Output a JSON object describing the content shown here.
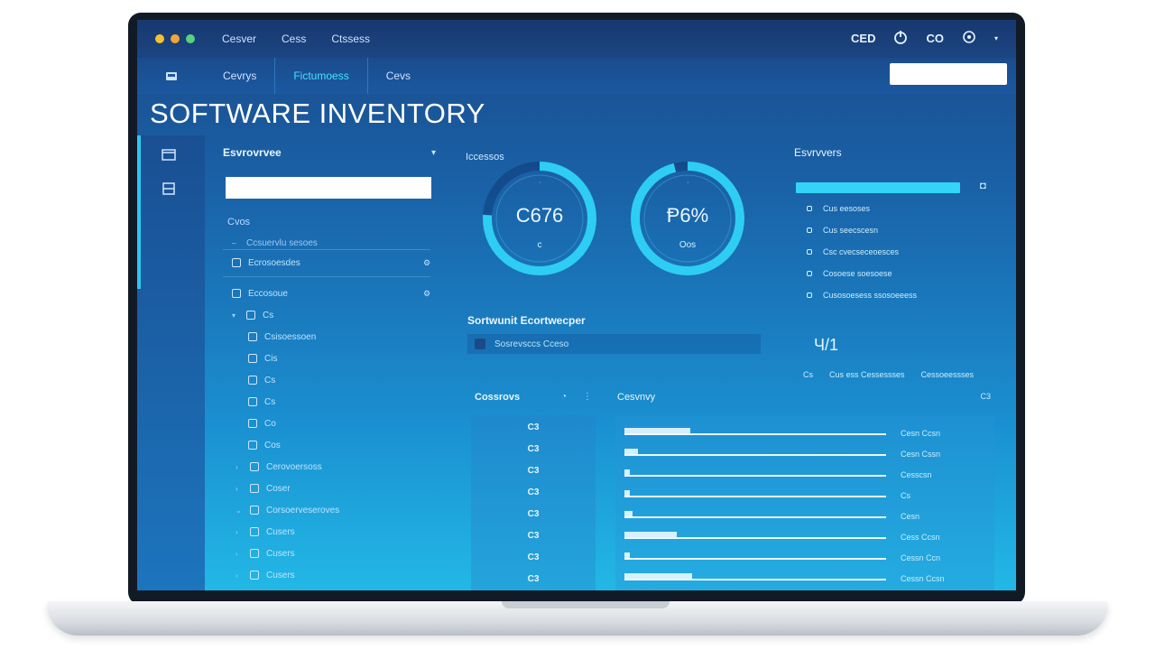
{
  "window": {
    "menu": [
      "Cesver",
      "Cess",
      "Ctssess"
    ],
    "actions": [
      "CED",
      "CO"
    ]
  },
  "nav": {
    "tabs": [
      "Cevrys",
      "Fictumoess",
      "Cevs"
    ]
  },
  "page": {
    "title": "SOFTWARE INVENTORY"
  },
  "tree": {
    "header": "Esvrovrvee",
    "label": "Cvos",
    "items": [
      {
        "label": "Ccsuervlu sesoes"
      },
      {
        "label": "Ecrosoesdes"
      },
      {
        "label": "Eccosoue"
      },
      {
        "label": "Cs"
      },
      {
        "label": "Csisoessoen"
      },
      {
        "label": "Cis"
      },
      {
        "label": "Cs"
      },
      {
        "label": "Cs"
      },
      {
        "label": "Co"
      },
      {
        "label": "Cos"
      },
      {
        "label": "Cerovoersoss"
      },
      {
        "label": "Coser"
      },
      {
        "label": "Corsoerveseroves"
      },
      {
        "label": "Cusers"
      },
      {
        "label": "Cusers"
      },
      {
        "label": "Cusers"
      }
    ]
  },
  "gauges": {
    "header": "Iccessos",
    "items": [
      {
        "value": "C676",
        "fraction": 0.76,
        "sub": "c"
      },
      {
        "value": "Ᵽ6%",
        "fraction": 0.96,
        "sub": "Oos"
      }
    ]
  },
  "software": {
    "title": "Sortwunit Ecortwecper",
    "row": "Sosrevsccs Cceso"
  },
  "right_panel": {
    "title": "Esvrvvers",
    "items": [
      {
        "label": "Cus eesoses"
      },
      {
        "label": "Cus seecscesn"
      },
      {
        "label": "Csc cvecseceoesces"
      },
      {
        "label": "Cosoese soesoese"
      },
      {
        "label": "Cusosoesess     ssosoeeess"
      }
    ],
    "summary": "Ч/1",
    "footer": [
      "Cs",
      "Cus ess Cessessses",
      "Cessoeessses"
    ]
  },
  "bottom": {
    "left_header": "Cossrovs",
    "counts": [
      "C3",
      "C3",
      "C3",
      "C3",
      "C3",
      "C3",
      "C3",
      "C3"
    ],
    "right_header": "Cesvnvy",
    "right_ctrl": "C3",
    "bars": [
      {
        "fill": 0.25,
        "label": "Cesn Ccsn"
      },
      {
        "fill": 0.05,
        "label": "Cesn Cssn"
      },
      {
        "fill": 0.02,
        "label": "Cesscsn"
      },
      {
        "fill": 0.02,
        "label": "Cs"
      },
      {
        "fill": 0.03,
        "label": "Cesn"
      },
      {
        "fill": 0.2,
        "label": "Cess Ccsn"
      },
      {
        "fill": 0.02,
        "label": "Cessn Ccn"
      },
      {
        "fill": 0.26,
        "label": "Cessn Ccsn"
      }
    ]
  },
  "colors": {
    "dot_yellow": "#f2c232",
    "dot_orange": "#f2a533",
    "dot_green": "#58d27c",
    "accent": "#33d4f6"
  }
}
